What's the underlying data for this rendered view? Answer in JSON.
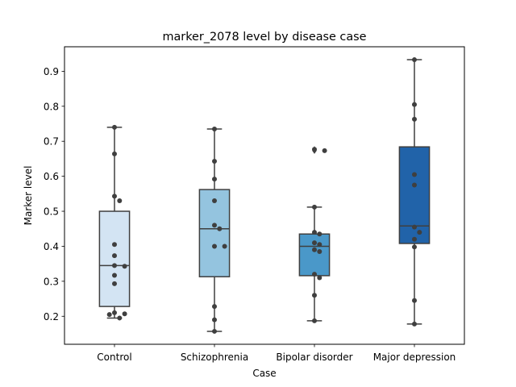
{
  "chart_data": {
    "type": "box",
    "title": "marker_2078 level by disease case",
    "xlabel": "Case",
    "ylabel": "Marker level",
    "categories": [
      "Control",
      "Schizophrenia",
      "Bipolar disorder",
      "Major depression"
    ],
    "ylim": [
      0.12,
      0.97
    ],
    "yticks": [
      0.2,
      0.3,
      0.4,
      0.5,
      0.6,
      0.7,
      0.8,
      0.9
    ],
    "colors": [
      "#d3e4f3",
      "#94c4df",
      "#4a98c9",
      "#2163a9"
    ],
    "boxes": [
      {
        "category": "Control",
        "whisker_low": 0.195,
        "q1": 0.228,
        "median": 0.345,
        "q3": 0.5,
        "whisker_high": 0.74,
        "outliers": []
      },
      {
        "category": "Schizophrenia",
        "whisker_low": 0.157,
        "q1": 0.313,
        "median": 0.45,
        "q3": 0.562,
        "whisker_high": 0.735,
        "outliers": []
      },
      {
        "category": "Bipolar disorder",
        "whisker_low": 0.187,
        "q1": 0.316,
        "median": 0.4,
        "q3": 0.435,
        "whisker_high": 0.512,
        "outliers": [
          0.673,
          0.677
        ]
      },
      {
        "category": "Major depression",
        "whisker_low": 0.178,
        "q1": 0.408,
        "median": 0.458,
        "q3": 0.684,
        "whisker_high": 0.933,
        "outliers": []
      }
    ],
    "points": [
      [
        0.74,
        0.664,
        0.543,
        0.53,
        0.405,
        0.373,
        0.345,
        0.343,
        0.317,
        0.293,
        0.21,
        0.207,
        0.205,
        0.195
      ],
      [
        0.735,
        0.643,
        0.592,
        0.53,
        0.46,
        0.45,
        0.4,
        0.4,
        0.228,
        0.19,
        0.157
      ],
      [
        0.677,
        0.673,
        0.512,
        0.44,
        0.435,
        0.41,
        0.405,
        0.39,
        0.385,
        0.32,
        0.31,
        0.26,
        0.187
      ],
      [
        0.933,
        0.805,
        0.763,
        0.605,
        0.575,
        0.455,
        0.44,
        0.42,
        0.398,
        0.245,
        0.178
      ]
    ]
  }
}
